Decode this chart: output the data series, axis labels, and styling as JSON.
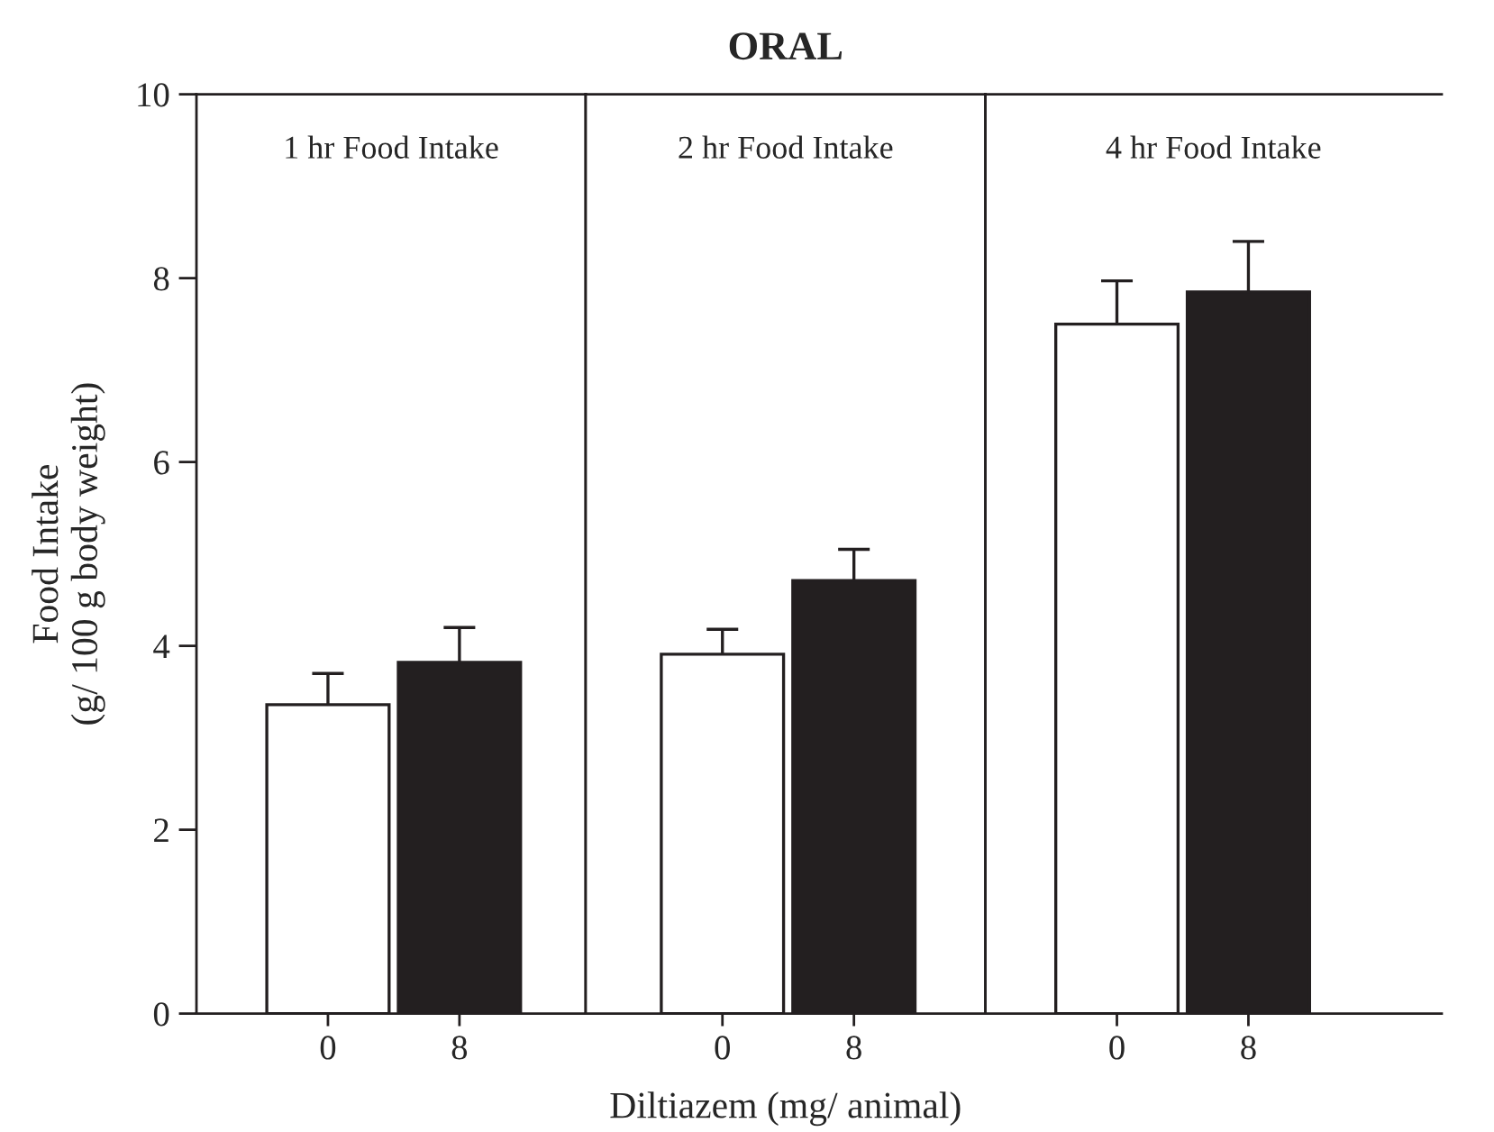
{
  "chart_data": [
    {
      "type": "bar",
      "ylabel": "Food Intake\n(g/ 100 g body weight)",
      "annotations": [
        "1 hr Food Intake"
      ],
      "categories": [
        "0",
        "8"
      ],
      "values": [
        3.36,
        3.82
      ],
      "colors": [
        "#ffffff",
        "#231f20"
      ],
      "errors": [
        [
          3.36,
          3.7
        ],
        [
          3.82,
          4.2
        ]
      ],
      "ylim": [
        0,
        10
      ],
      "yticks": [
        0,
        2,
        4,
        6,
        8,
        10
      ],
      "grid": false,
      "legend": false
    },
    {
      "type": "bar",
      "title": "ORAL",
      "xlabel": "Diltiazem (mg/ animal)",
      "annotations": [
        "2 hr Food Intake"
      ],
      "categories": [
        "0",
        "8"
      ],
      "values": [
        3.91,
        4.71
      ],
      "colors": [
        "#ffffff",
        "#231f20"
      ],
      "errors": [
        [
          3.91,
          4.18
        ],
        [
          4.71,
          5.05
        ]
      ],
      "ylim": [
        0,
        10
      ],
      "yticks": [
        0,
        2,
        4,
        6,
        8,
        10
      ],
      "tick_labels": "x",
      "grid": false,
      "legend": false
    },
    {
      "type": "bar",
      "annotations": [
        "4 hr Food Intake"
      ],
      "categories": [
        "0",
        "8"
      ],
      "values": [
        7.5,
        7.85
      ],
      "colors": [
        "#ffffff",
        "#231f20"
      ],
      "errors": [
        [
          7.5,
          7.97
        ],
        [
          7.85,
          8.4
        ]
      ],
      "ylim": [
        0,
        10
      ],
      "yticks": [
        0,
        2,
        4,
        6,
        8,
        10
      ],
      "tick_labels": "x",
      "grid": false,
      "legend": false
    }
  ]
}
